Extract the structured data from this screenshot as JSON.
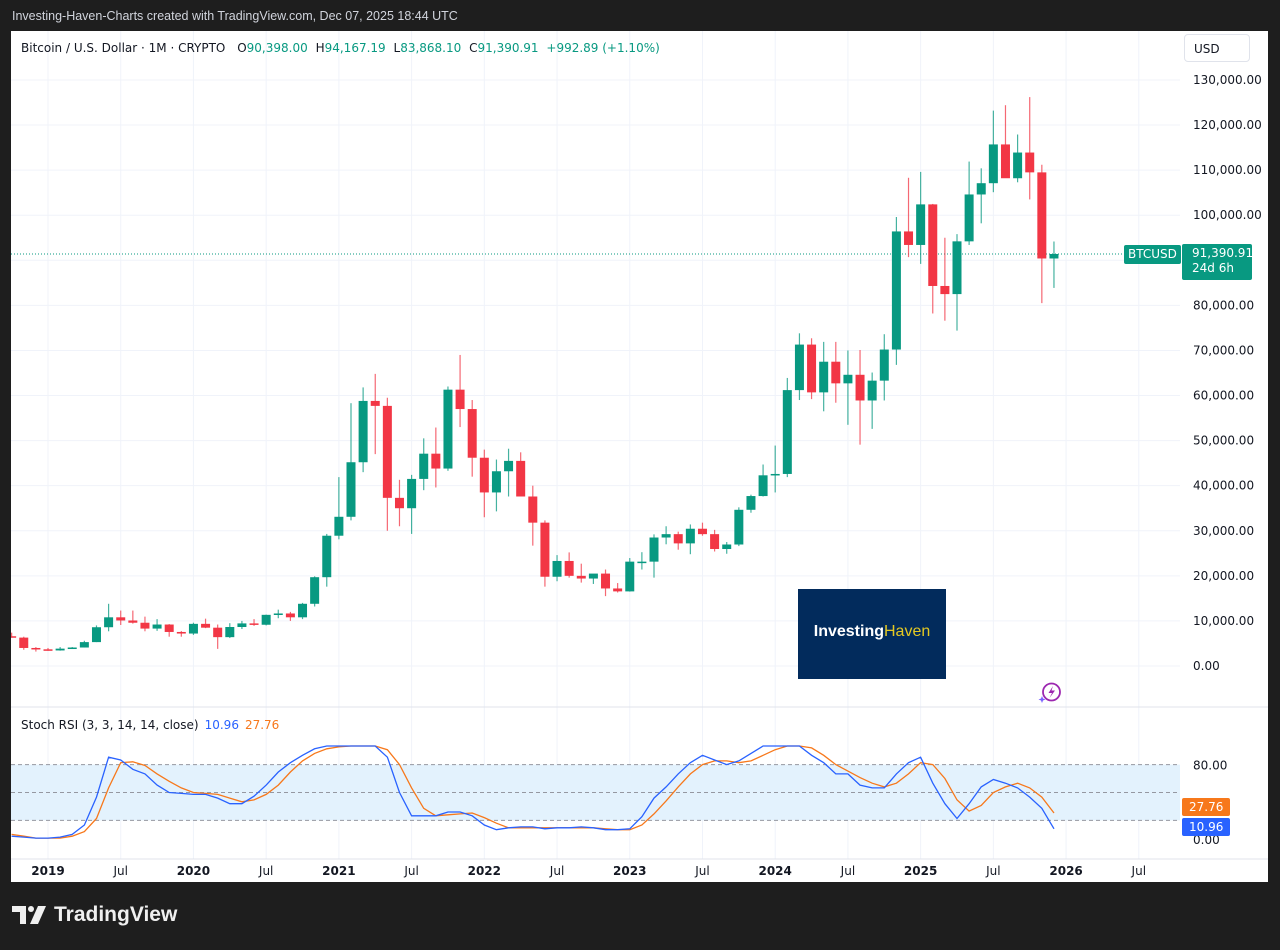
{
  "caption": "Investing-Haven-Charts created with TradingView.com, Dec 07, 2025 18:44 UTC",
  "legend": {
    "symbol": "Bitcoin / U.S. Dollar · 1M · CRYPTO",
    "o_label": "O",
    "o": "90,398.00",
    "h_label": "H",
    "h": "94,167.19",
    "l_label": "L",
    "l": "83,868.10",
    "c_label": "C",
    "c": "91,390.91",
    "change": "+992.89 (+1.10%)"
  },
  "currency_button": "USD",
  "price_tag": {
    "symbol": "BTCUSD",
    "last": "91,390.91",
    "countdown": "24d 6h"
  },
  "stoch_rsi": {
    "label": "Stoch RSI (3, 3, 14, 14, close)",
    "k": "10.96",
    "d": "27.76",
    "k_color": "#2962ff",
    "d_color": "#f7781b"
  },
  "watermark": {
    "brand_a": "Investing",
    "brand_b": "Haven"
  },
  "footer_brand": "TradingView",
  "colors": {
    "up": "#089981",
    "down": "#f23645",
    "grid": "#f0f3fa",
    "band": "#e3f2fd"
  },
  "chart_data": {
    "type": "candlestick",
    "title": "Bitcoin / U.S. Dollar · 1M · CRYPTO",
    "xlabel": "",
    "ylabel": "USD",
    "ylim": [
      0,
      130000
    ],
    "y_ticks": [
      "130,000.00",
      "120,000.00",
      "110,000.00",
      "100,000.00",
      "80,000.00",
      "70,000.00",
      "60,000.00",
      "50,000.00",
      "40,000.00",
      "30,000.00",
      "20,000.00",
      "10,000.00",
      "0.00"
    ],
    "x_ticks": [
      "2019",
      "Jul",
      "2020",
      "Jul",
      "2021",
      "Jul",
      "2022",
      "Jul",
      "2023",
      "Jul",
      "2024",
      "Jul",
      "2025",
      "Jul",
      "2026",
      "Jul"
    ],
    "grid": true,
    "candles_start": "2018-10",
    "candles": [
      [
        6600,
        7400,
        6300,
        6300
      ],
      [
        6300,
        6500,
        3600,
        4000
      ],
      [
        4000,
        4200,
        3200,
        3700
      ],
      [
        3700,
        4000,
        3400,
        3450
      ],
      [
        3450,
        4200,
        3400,
        3850
      ],
      [
        3850,
        4200,
        3800,
        4100
      ],
      [
        4100,
        5600,
        4100,
        5300
      ],
      [
        5300,
        9000,
        5300,
        8600
      ],
      [
        8600,
        13800,
        7700,
        10800
      ],
      [
        10800,
        12300,
        9100,
        10100
      ],
      [
        10100,
        12300,
        9400,
        9600
      ],
      [
        9600,
        10950,
        7700,
        8300
      ],
      [
        8300,
        10400,
        7800,
        9200
      ],
      [
        9200,
        9300,
        6500,
        7550
      ],
      [
        7550,
        7750,
        6500,
        7200
      ],
      [
        7200,
        9600,
        6900,
        9350
      ],
      [
        9350,
        10500,
        8400,
        8500
      ],
      [
        8500,
        9200,
        3800,
        6400
      ],
      [
        6400,
        9500,
        6200,
        8650
      ],
      [
        8650,
        10000,
        8200,
        9450
      ],
      [
        9450,
        10400,
        8900,
        9150
      ],
      [
        9150,
        11400,
        9000,
        11350
      ],
      [
        11350,
        12500,
        10600,
        11650
      ],
      [
        11650,
        12000,
        10000,
        10800
      ],
      [
        10800,
        14000,
        10400,
        13800
      ],
      [
        13800,
        19900,
        13200,
        19700
      ],
      [
        19700,
        29300,
        17600,
        28900
      ],
      [
        28900,
        41900,
        28100,
        33100
      ],
      [
        33100,
        58300,
        32300,
        45200
      ],
      [
        45200,
        61800,
        43000,
        58800
      ],
      [
        58800,
        64800,
        47000,
        57700
      ],
      [
        57700,
        59500,
        30000,
        37300
      ],
      [
        37300,
        41300,
        31000,
        35000
      ],
      [
        35000,
        42400,
        29300,
        41500
      ],
      [
        41500,
        50500,
        39000,
        47100
      ],
      [
        47100,
        52900,
        39600,
        43800
      ],
      [
        43800,
        62000,
        43300,
        61300
      ],
      [
        61300,
        69000,
        53000,
        57000
      ],
      [
        57000,
        59000,
        42000,
        46200
      ],
      [
        46200,
        48000,
        33000,
        38500
      ],
      [
        38500,
        45800,
        34300,
        43200
      ],
      [
        43200,
        48200,
        37600,
        45500
      ],
      [
        45500,
        47400,
        37600,
        37600
      ],
      [
        37600,
        40000,
        26700,
        31800
      ],
      [
        31800,
        32300,
        17600,
        19800
      ],
      [
        19800,
        24600,
        18800,
        23300
      ],
      [
        23300,
        25200,
        19600,
        20000
      ],
      [
        20000,
        22700,
        18500,
        19400
      ],
      [
        19400,
        20400,
        18200,
        20500
      ],
      [
        20500,
        21400,
        15500,
        17200
      ],
      [
        17200,
        18400,
        16300,
        16550
      ],
      [
        16550,
        23950,
        16500,
        23150
      ],
      [
        23150,
        25250,
        21400,
        23150
      ],
      [
        23150,
        29200,
        19600,
        28500
      ],
      [
        28500,
        31000,
        27000,
        29250
      ],
      [
        29250,
        29800,
        25800,
        27200
      ],
      [
        27200,
        31400,
        24800,
        30450
      ],
      [
        30450,
        31800,
        28900,
        29250
      ],
      [
        29250,
        30200,
        25400,
        25950
      ],
      [
        25950,
        27500,
        24900,
        26950
      ],
      [
        26950,
        35200,
        26600,
        34650
      ],
      [
        34650,
        38000,
        34000,
        37700
      ],
      [
        37700,
        44700,
        37600,
        42300
      ],
      [
        42300,
        48900,
        38500,
        42600
      ],
      [
        42600,
        63900,
        41900,
        61200
      ],
      [
        61200,
        73800,
        59000,
        71300
      ],
      [
        71300,
        72700,
        59200,
        60700
      ],
      [
        60700,
        71900,
        56500,
        67500
      ],
      [
        67500,
        71900,
        58400,
        62700
      ],
      [
        62700,
        70000,
        53500,
        64600
      ],
      [
        64600,
        70100,
        49100,
        58900
      ],
      [
        58900,
        65100,
        52600,
        63300
      ],
      [
        63300,
        73600,
        58900,
        70200
      ],
      [
        70200,
        99600,
        66800,
        96400
      ],
      [
        96400,
        108300,
        90700,
        93400
      ],
      [
        93400,
        109600,
        89200,
        102400
      ],
      [
        102400,
        102500,
        78200,
        84300
      ],
      [
        84300,
        95000,
        76600,
        82500
      ],
      [
        82500,
        95800,
        74400,
        94200
      ],
      [
        94200,
        111900,
        93400,
        104600
      ],
      [
        104600,
        110400,
        98200,
        107100
      ],
      [
        107100,
        123200,
        105100,
        115700
      ],
      [
        115700,
        124400,
        111900,
        108200
      ],
      [
        108200,
        117900,
        107300,
        113900
      ],
      [
        113900,
        126200,
        103500,
        109500
      ],
      [
        109500,
        111200,
        80500,
        90400
      ],
      [
        90398,
        94167,
        83868,
        91391
      ]
    ],
    "stoch_rsi_k": [
      3,
      2,
      1,
      1,
      2,
      5,
      15,
      45,
      88,
      85,
      75,
      70,
      58,
      50,
      49,
      48,
      48,
      44,
      38,
      38,
      46,
      58,
      72,
      82,
      90,
      97,
      100,
      100,
      100,
      100,
      100,
      88,
      50,
      25,
      25,
      25,
      29,
      29,
      25,
      15,
      10,
      12,
      13,
      13,
      11,
      12,
      12,
      13,
      12,
      10,
      10,
      11,
      24,
      44,
      56,
      70,
      82,
      90,
      85,
      80,
      84,
      92,
      100,
      100,
      100,
      100,
      90,
      82,
      70,
      70,
      58,
      55,
      55,
      70,
      82,
      88,
      60,
      38,
      22,
      38,
      56,
      64,
      60,
      55,
      45,
      33,
      11
    ],
    "stoch_rsi_d": [
      5,
      3,
      1,
      1,
      1,
      3,
      8,
      22,
      55,
      82,
      83,
      79,
      70,
      62,
      55,
      50,
      49,
      48,
      44,
      40,
      42,
      48,
      58,
      72,
      84,
      92,
      97,
      99,
      100,
      100,
      100,
      96,
      80,
      55,
      33,
      25,
      26,
      27,
      28,
      23,
      17,
      12,
      12,
      12,
      12,
      12,
      12,
      12,
      12,
      11,
      10,
      10,
      15,
      27,
      41,
      56,
      70,
      80,
      84,
      84,
      82,
      84,
      90,
      96,
      100,
      100,
      98,
      90,
      80,
      73,
      66,
      60,
      56,
      60,
      70,
      82,
      80,
      65,
      42,
      30,
      36,
      50,
      56,
      60,
      55,
      45,
      28
    ],
    "rsi_ylim": [
      0,
      100
    ],
    "rsi_levels": [
      80,
      50,
      20
    ]
  }
}
